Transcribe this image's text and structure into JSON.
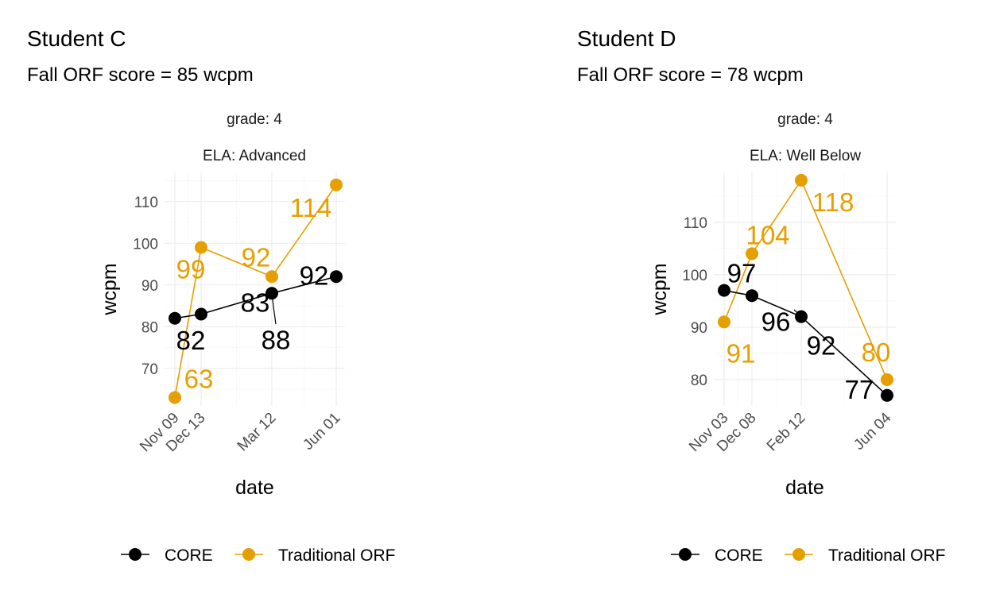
{
  "chart_data": [
    {
      "type": "line",
      "title": "Student C",
      "subtitle": "Fall ORF score = 85 wcpm",
      "facet_strips": [
        "grade: 4",
        "ELA: Advanced"
      ],
      "xlabel": "date",
      "ylabel": "wcpm",
      "x_ticks": [
        "Nov 09",
        "Dec 13",
        "Mar 12",
        "Jun 01"
      ],
      "ylim": [
        61,
        117
      ],
      "y_ticks": [
        70,
        80,
        90,
        100,
        110
      ],
      "grid": true,
      "series": [
        {
          "name": "CORE",
          "color": "#000000",
          "points": [
            {
              "x": "Nov 09",
              "y": 82,
              "label": "82"
            },
            {
              "x": "Dec 13",
              "y": 83,
              "label": "83"
            },
            {
              "x": "Mar 12",
              "y": 88,
              "label": "88"
            },
            {
              "x": "Jun 01",
              "y": 92,
              "label": "92"
            }
          ]
        },
        {
          "name": "Traditional ORF",
          "color": "#E69F00",
          "points": [
            {
              "x": "Nov 09",
              "y": 63,
              "label": "63"
            },
            {
              "x": "Dec 13",
              "y": 99,
              "label": "99"
            },
            {
              "x": "Mar 12",
              "y": 92,
              "label": "92"
            },
            {
              "x": "Jun 01",
              "y": 114,
              "label": "114"
            }
          ]
        }
      ],
      "legend": {
        "position": "bottom",
        "entries": [
          "CORE",
          "Traditional ORF"
        ]
      }
    },
    {
      "type": "line",
      "title": "Student D",
      "subtitle": "Fall ORF score = 78 wcpm",
      "facet_strips": [
        "grade: 4",
        "ELA: Well Below"
      ],
      "xlabel": "date",
      "ylabel": "wcpm",
      "x_ticks": [
        "Nov 03",
        "Dec 08",
        "Feb 12",
        "Jun 04"
      ],
      "ylim": [
        75,
        119.5
      ],
      "y_ticks": [
        80,
        90,
        100,
        110
      ],
      "grid": true,
      "series": [
        {
          "name": "CORE",
          "color": "#000000",
          "points": [
            {
              "x": "Nov 03",
              "y": 97,
              "label": "97"
            },
            {
              "x": "Dec 08",
              "y": 96,
              "label": "96"
            },
            {
              "x": "Feb 12",
              "y": 92,
              "label": "92"
            },
            {
              "x": "Jun 04",
              "y": 77,
              "label": "77"
            }
          ]
        },
        {
          "name": "Traditional ORF",
          "color": "#E69F00",
          "points": [
            {
              "x": "Nov 03",
              "y": 91,
              "label": "91"
            },
            {
              "x": "Dec 08",
              "y": 104,
              "label": "104"
            },
            {
              "x": "Feb 12",
              "y": 118,
              "label": "118"
            },
            {
              "x": "Jun 04",
              "y": 80,
              "label": "80"
            }
          ]
        }
      ],
      "legend": {
        "position": "bottom",
        "entries": [
          "CORE",
          "Traditional ORF"
        ]
      }
    }
  ]
}
